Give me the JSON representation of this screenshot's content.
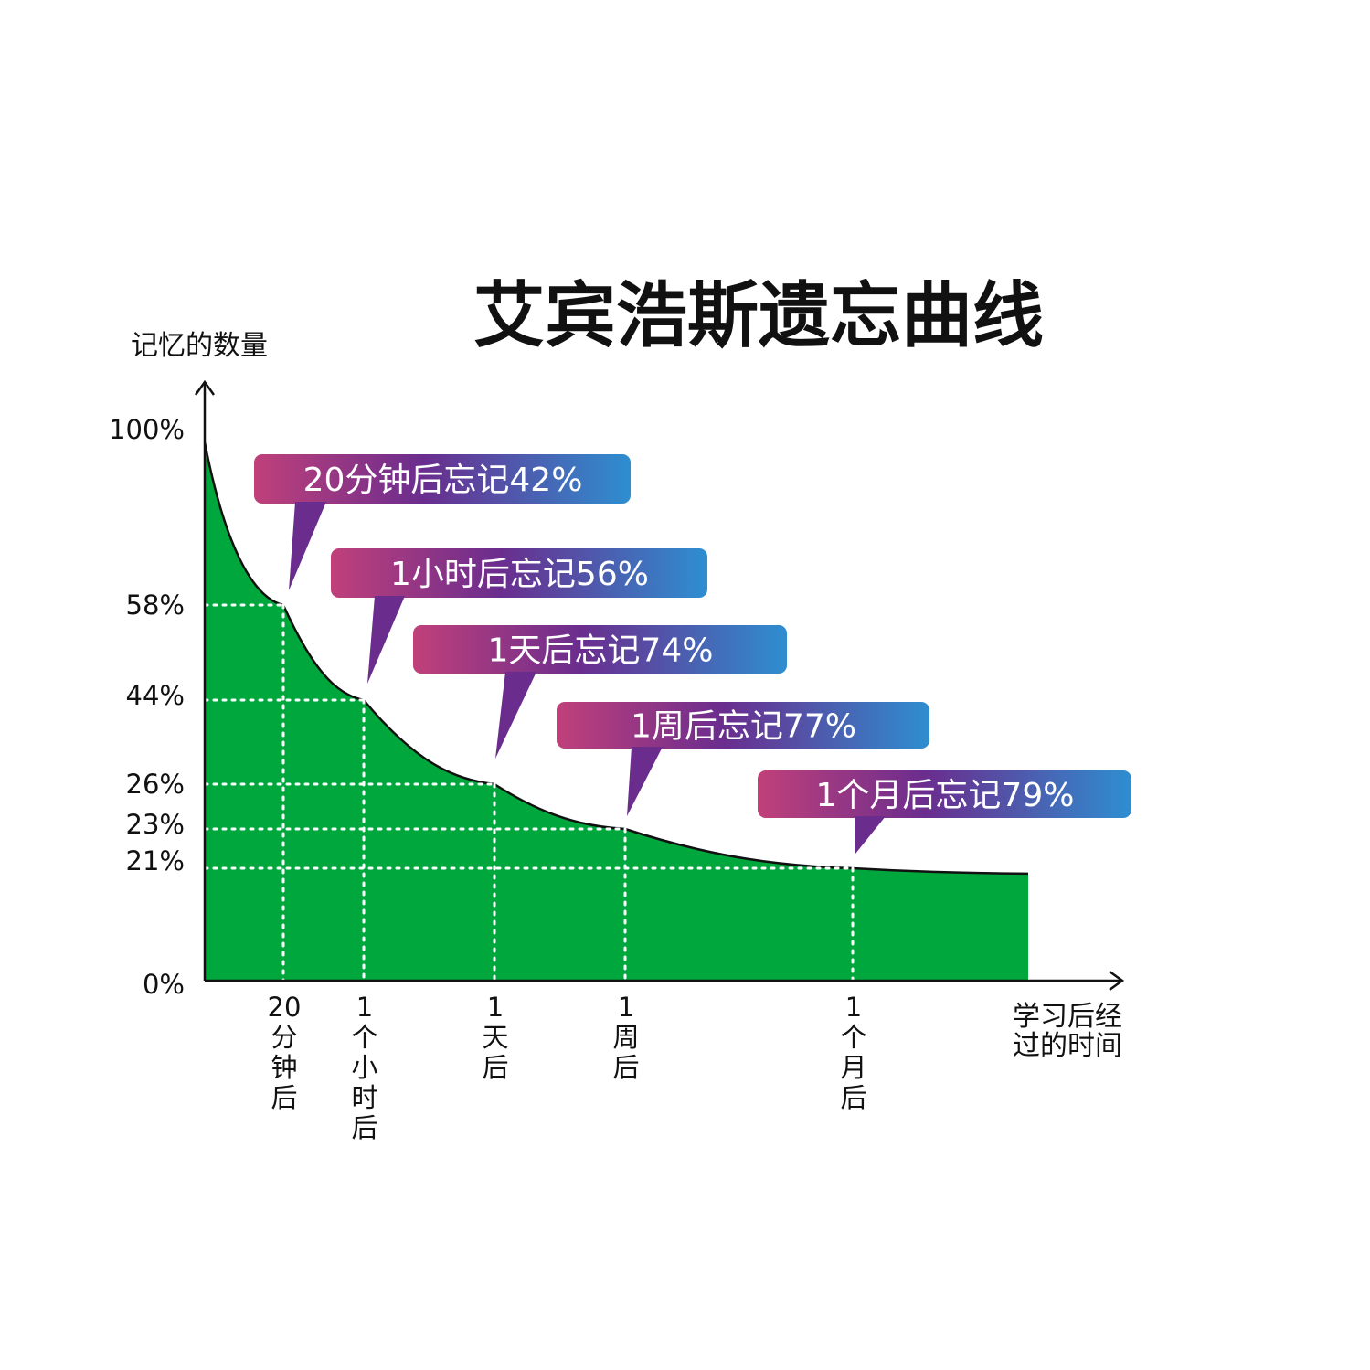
{
  "chart_data": {
    "type": "area",
    "title": "艾宾浩斯遗忘曲线",
    "ylabel": "记忆的数量",
    "xlabel": "学习后经过的时间",
    "ylim": [
      0,
      100
    ],
    "yticks": [
      "100%",
      "58%",
      "44%",
      "26%",
      "23%",
      "21%",
      "0%"
    ],
    "ytick_values": [
      100,
      58,
      44,
      26,
      23,
      21,
      0
    ],
    "points": [
      {
        "x": "20分钟后",
        "x_lines": [
          "20",
          "分",
          "钟",
          "后"
        ],
        "y": 58
      },
      {
        "x": "1个小时后",
        "x_lines": [
          "1",
          "个",
          "小",
          "时",
          "后"
        ],
        "y": 44
      },
      {
        "x": "1天后",
        "x_lines": [
          "1",
          "天",
          "后"
        ],
        "y": 26
      },
      {
        "x": "1周后",
        "x_lines": [
          "1",
          "周",
          "后"
        ],
        "y": 23
      },
      {
        "x": "1个月后",
        "x_lines": [
          "1",
          "个",
          "月",
          "后"
        ],
        "y": 21
      }
    ],
    "annotations": [
      "20分钟后忘记42%",
      "1小时后忘记56%",
      "1天后忘记74%",
      "1周后忘记77%",
      "1个月后忘记79%"
    ],
    "grid": "dotted",
    "colors": {
      "area": "#00a73c",
      "curve": "#111111",
      "callout_start": "#c0407a",
      "callout_mid": "#6a2d8e",
      "callout_end": "#2e8ed0",
      "gridline": "#ffffff"
    }
  }
}
